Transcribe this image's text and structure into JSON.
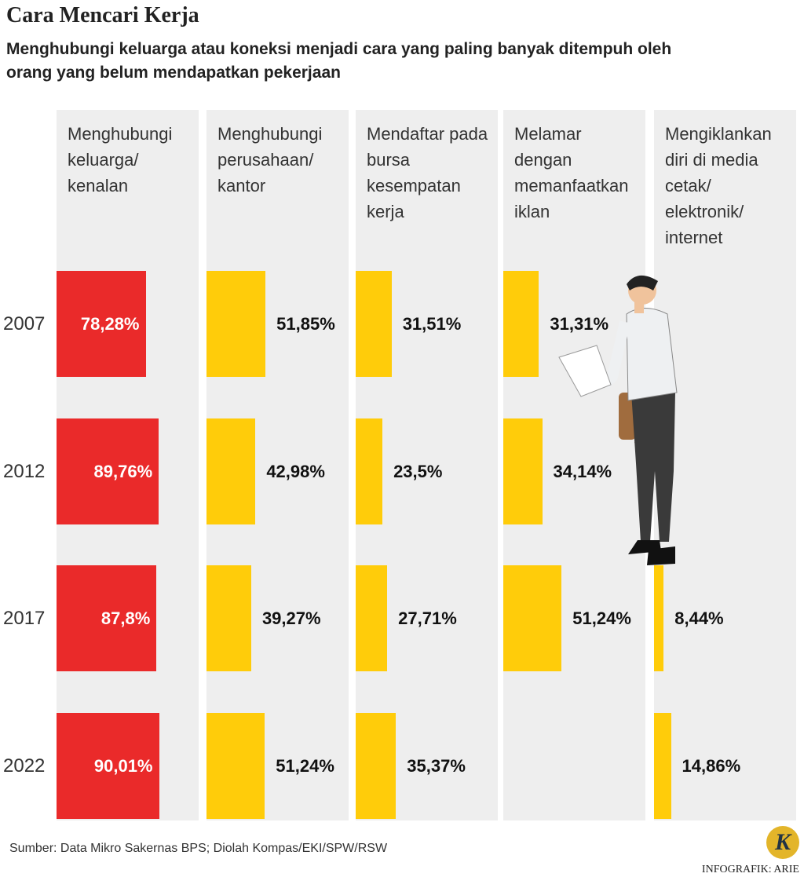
{
  "chart_data": {
    "type": "bar",
    "title": "Cara Mencari Kerja",
    "subtitle": "Menghubungi keluarga atau koneksi menjadi cara yang paling banyak ditempuh oleh orang yang belum mendapatkan pekerjaan",
    "categories": [
      "2007",
      "2012",
      "2017",
      "2022"
    ],
    "xlim": [
      0,
      100
    ],
    "series": [
      {
        "name": "Menghubungi keluarga/ kenalan",
        "color": "#ea2a2a",
        "values": [
          78.28,
          89.76,
          87.8,
          90.01
        ],
        "value_labels": [
          "78,28%",
          "89,76%",
          "87,8%",
          "90,01%"
        ]
      },
      {
        "name": "Menghubungi perusahaan/ kantor",
        "color": "#ffcc0a",
        "values": [
          51.85,
          42.98,
          39.27,
          51.24
        ],
        "value_labels": [
          "51,85%",
          "42,98%",
          "39,27%",
          "51,24%"
        ]
      },
      {
        "name": "Mendaftar pada bursa kesempatan kerja",
        "color": "#ffcc0a",
        "values": [
          31.51,
          23.5,
          27.71,
          35.37
        ],
        "value_labels": [
          "31,51%",
          "23,5%",
          "27,71%",
          "35,37%"
        ]
      },
      {
        "name": "Melamar dengan memanfaatkan iklan",
        "color": "#ffcc0a",
        "values": [
          31.31,
          34.14,
          51.24,
          null
        ],
        "value_labels": [
          "31,31%",
          "34,14%",
          "51,24%",
          null
        ]
      },
      {
        "name": "Mengiklankan diri di media cetak/ elektronik/ internet",
        "color": "#ffcc0a",
        "values": [
          null,
          null,
          8.44,
          14.86
        ],
        "value_labels": [
          null,
          null,
          "8,44%",
          "14,86%"
        ]
      }
    ],
    "source": "Sumber: Data Mikro Sakernas BPS; Diolah Kompas/EKI/SPW/RSW",
    "credit": "INFOGRAFIK: ARIE",
    "logo": "K"
  }
}
